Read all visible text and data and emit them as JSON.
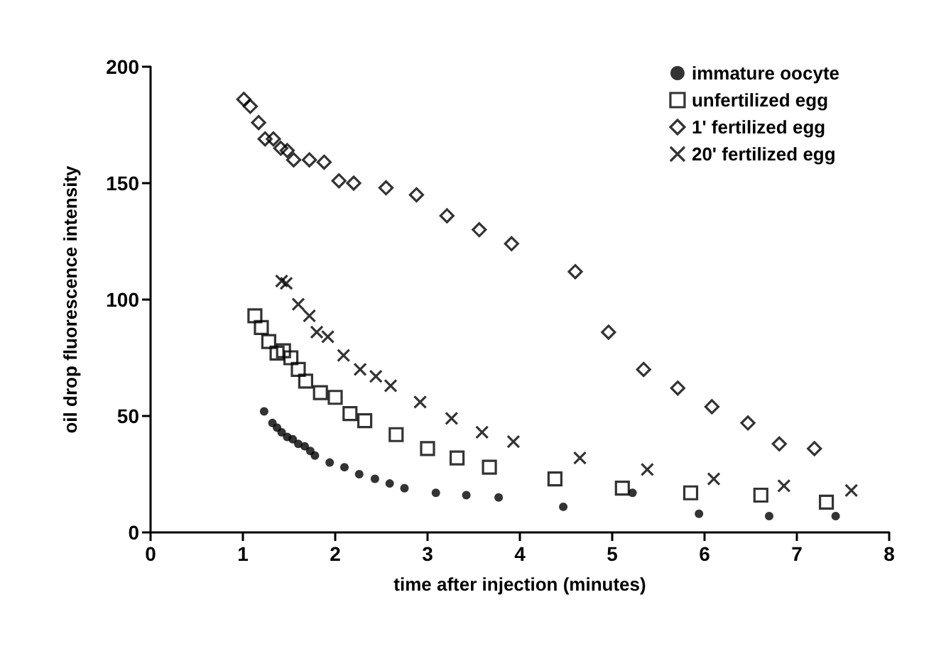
{
  "chart_data": {
    "type": "scatter",
    "xlabel": "time after injection (minutes)",
    "ylabel": "oil drop fluorescence intensity",
    "xlim": [
      0,
      8
    ],
    "xticks": [
      0,
      1,
      2,
      3,
      4,
      5,
      6,
      7,
      8
    ],
    "ylim": [
      0,
      200
    ],
    "yticks": [
      0,
      50,
      100,
      150,
      200
    ],
    "grid": false,
    "legend": "top right",
    "series": [
      {
        "name": "immature oocyte",
        "color": "#000000",
        "marker": "circle",
        "x": [
          1.23,
          1.32,
          1.37,
          1.42,
          1.48,
          1.54,
          1.6,
          1.67,
          1.73,
          1.78,
          1.94,
          2.1,
          2.26,
          2.43,
          2.59,
          2.75,
          3.09,
          3.42,
          3.77,
          4.47,
          5.22,
          5.94,
          6.7,
          7.42
        ],
        "values": [
          52,
          47,
          45,
          43,
          41,
          40,
          38,
          37,
          35,
          33,
          30,
          28,
          25,
          23,
          21,
          19,
          17,
          16,
          15,
          11,
          17,
          8,
          7,
          7
        ]
      },
      {
        "name": "unfertilized egg",
        "color": "#000000",
        "marker": "square",
        "x": [
          1.13,
          1.2,
          1.28,
          1.37,
          1.44,
          1.52,
          1.6,
          1.68,
          1.84,
          2.0,
          2.16,
          2.32,
          2.66,
          3.0,
          3.32,
          3.67,
          4.38,
          5.11,
          5.85,
          6.61,
          7.32
        ],
        "values": [
          93,
          88,
          82,
          77,
          78,
          75,
          70,
          65,
          60,
          58,
          51,
          48,
          42,
          36,
          32,
          28,
          23,
          19,
          17,
          16,
          13
        ]
      },
      {
        "name": "1' fertilized egg",
        "color": "#000000",
        "marker": "diamond",
        "x": [
          1.01,
          1.08,
          1.17,
          1.24,
          1.33,
          1.41,
          1.48,
          1.55,
          1.72,
          1.88,
          2.04,
          2.2,
          2.55,
          2.88,
          3.21,
          3.56,
          3.91,
          4.6,
          4.96,
          5.34,
          5.71,
          6.08,
          6.47,
          6.81,
          7.19
        ],
        "values": [
          186,
          183,
          176,
          169,
          169,
          165,
          164,
          160,
          160,
          159,
          151,
          150,
          148,
          145,
          136,
          130,
          124,
          112,
          86,
          70,
          62,
          54,
          47,
          38,
          36
        ]
      },
      {
        "name": "20' fertilized egg",
        "color": "#000000",
        "marker": "cross",
        "x": [
          1.42,
          1.47,
          1.6,
          1.72,
          1.8,
          1.92,
          2.09,
          2.27,
          2.44,
          2.6,
          2.92,
          3.26,
          3.59,
          3.93,
          4.65,
          5.38,
          6.1,
          6.86,
          7.59
        ],
        "values": [
          108,
          107,
          98,
          93,
          86,
          84,
          76,
          70,
          67,
          63,
          56,
          49,
          43,
          39,
          32,
          27,
          23,
          20,
          18
        ]
      }
    ]
  }
}
